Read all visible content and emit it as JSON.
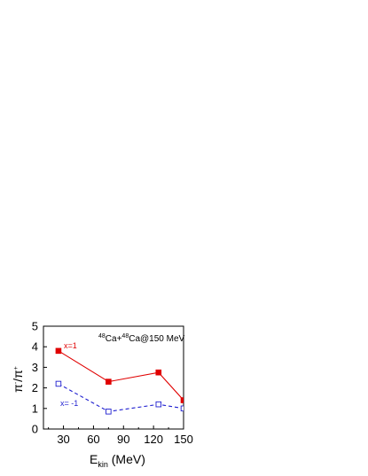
{
  "chart_data": {
    "type": "line",
    "x": [
      25,
      75,
      125,
      150
    ],
    "series": [
      {
        "name": "x=1",
        "values": [
          3.8,
          2.3,
          2.75,
          1.4
        ],
        "color": "#e00000",
        "line": "solid",
        "marker": "filled-square"
      },
      {
        "name": "x= -1",
        "values": [
          2.2,
          0.85,
          1.2,
          1.0
        ],
        "color": "#1f1fd0",
        "line": "dashed",
        "marker": "open-square"
      }
    ],
    "xlim": [
      10,
      150
    ],
    "ylim": [
      0,
      5
    ],
    "xticks": [
      30,
      60,
      90,
      120,
      150
    ],
    "yticks": [
      0,
      1,
      2,
      3,
      4,
      5
    ],
    "xlabel": {
      "main": "E",
      "sub": "kin",
      "rest": " (MeV)"
    },
    "ylabel": {
      "a": "π",
      "a_sup": "-",
      "b": "/π",
      "b_sup": "+"
    },
    "annotation": {
      "sup1": "48",
      "t1": "Ca+",
      "sup2": "48",
      "t2": "Ca@150 MeV"
    },
    "grid": false,
    "legend": "none"
  }
}
